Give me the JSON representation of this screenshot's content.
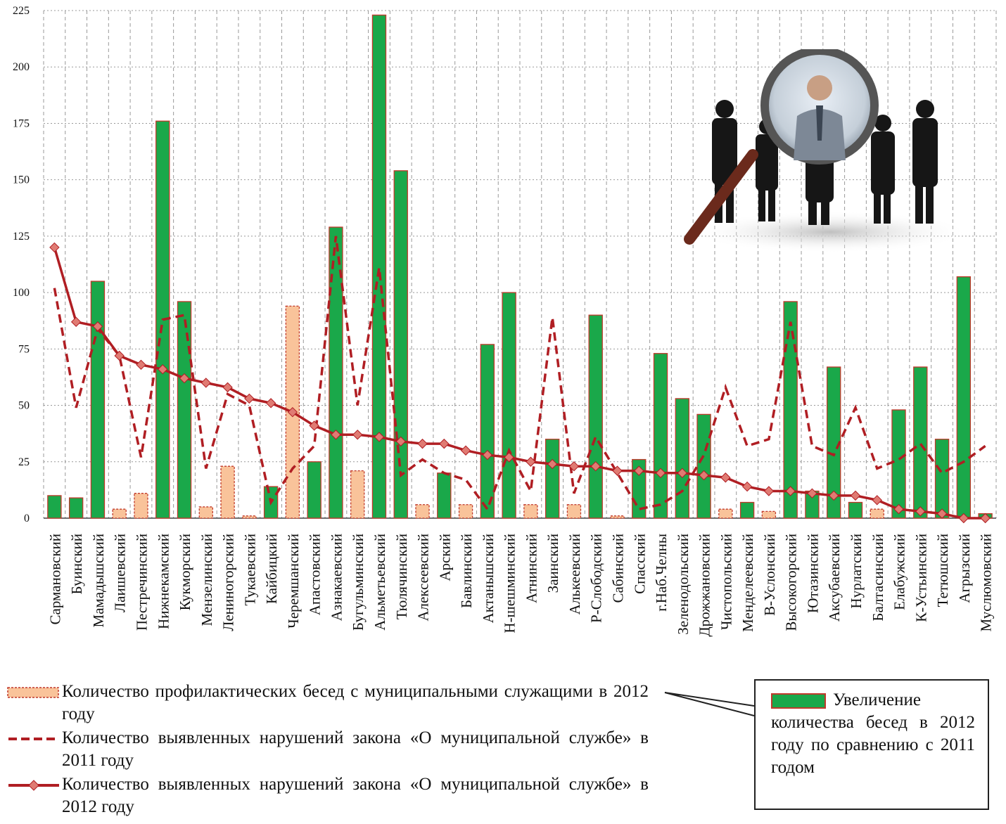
{
  "chart_data": {
    "type": "bar",
    "ylim": [
      0,
      225
    ],
    "yticks": [
      0,
      25,
      50,
      75,
      100,
      125,
      150,
      175,
      200,
      225
    ],
    "grid": true,
    "categories": [
      "Сармановский",
      "Буинский",
      "Мамадышский",
      "Лаишевский",
      "Пестречинский",
      "Нижнекамский",
      "Кукморский",
      "Мензелинский",
      "Лениногорский",
      "Тукаевский",
      "Кайбицкий",
      "Черемшанский",
      "Апастовский",
      "Азнакаевский",
      "Бугульминский",
      "Альметьевский",
      "Тюлячинский",
      "Алексеевский",
      "Арский",
      "Бавлинский",
      "Актанышский",
      "Н-шешминский",
      "Атнинский",
      "Заинский",
      "Алькеевский",
      "Р-Слободский",
      "Сабинский",
      "Спасский",
      "г.Наб.Челны",
      "Зеленодольский",
      "Дрожжановский",
      "Чистопольский",
      "Менделеевский",
      "В-Услонский",
      "Высокогорский",
      "Ютазинский",
      "Аксубаевский",
      "Нурлатский",
      "Балтасинский",
      "Елабужский",
      "К-Устьинский",
      "Тетюшский",
      "Агрызский",
      "Муслюмовский"
    ],
    "series": [
      {
        "name": "Количество профилактических бесед с муниципальными служащими в 2012 году",
        "kind": "bar-peach",
        "values": [
          null,
          null,
          null,
          4,
          11,
          null,
          null,
          5,
          23,
          1,
          null,
          94,
          null,
          null,
          21,
          null,
          null,
          6,
          null,
          6,
          null,
          null,
          6,
          null,
          6,
          null,
          1,
          null,
          null,
          null,
          null,
          4,
          null,
          3,
          null,
          null,
          null,
          null,
          4,
          null,
          null,
          null,
          null,
          null
        ]
      },
      {
        "name": "Увеличение количества бесед в 2012 году по сравнению с 2011 годом",
        "kind": "bar-green",
        "values": [
          10,
          9,
          105,
          null,
          null,
          176,
          96,
          null,
          null,
          null,
          14,
          null,
          25,
          129,
          null,
          223,
          154,
          null,
          20,
          null,
          77,
          100,
          null,
          35,
          null,
          90,
          null,
          26,
          73,
          53,
          46,
          null,
          7,
          null,
          96,
          12,
          67,
          7,
          null,
          48,
          67,
          35,
          107,
          2
        ]
      },
      {
        "name": "Количество выявленных нарушений закона «О муниципальной службе» в 2011 году",
        "kind": "line-dashed",
        "values": [
          102,
          49,
          84,
          72,
          27,
          88,
          90,
          22,
          55,
          50,
          7,
          22,
          32,
          125,
          50,
          111,
          19,
          26,
          20,
          17,
          4,
          30,
          12,
          89,
          11,
          36,
          20,
          4,
          6,
          12,
          28,
          58,
          32,
          35,
          87,
          32,
          28,
          49,
          22,
          26,
          33,
          20,
          25,
          32
        ]
      },
      {
        "name": "Количество выявленных нарушений закона «О муниципальной службе» в 2012 году",
        "kind": "line-diamond",
        "values": [
          120,
          87,
          85,
          72,
          68,
          66,
          62,
          60,
          58,
          53,
          51,
          47,
          41,
          37,
          37,
          36,
          34,
          33,
          33,
          30,
          28,
          27,
          25,
          24,
          23,
          23,
          21,
          21,
          20,
          20,
          19,
          18,
          14,
          12,
          12,
          11,
          10,
          10,
          8,
          4,
          3,
          2,
          0,
          0
        ]
      }
    ]
  },
  "legend": {
    "item1": "Количество профилактических бесед с муниципальными служащими в 2012 году",
    "item2": "Количество выявленных нарушений закона «О муниципальной службе» в 2011 году",
    "item3": "Количество выявленных нарушений закона «О муниципальной службе» в 2012 году",
    "callout": "Увеличение количества бесед в 2012 году по сравнению с 2011 годом"
  },
  "colors": {
    "green": "#1aa84a",
    "peach": "#f9c39a",
    "red": "#c0392b",
    "darkred": "#b01e23",
    "diamond": "#e07b73"
  },
  "image": {
    "icon": "magnifier-businessmen-picture"
  }
}
